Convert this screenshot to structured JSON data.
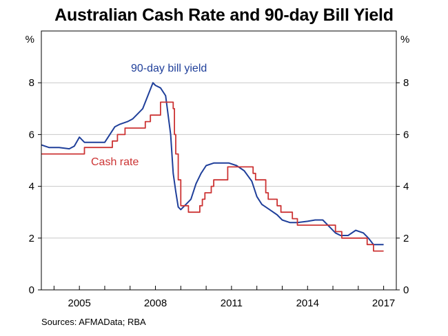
{
  "title": "Australian Cash Rate and 90-day Bill Yield",
  "source": "Sources:   AFMAData; RBA",
  "colors": {
    "bill_yield": "#1f3f9a",
    "cash_rate": "#cc3333",
    "grid": "#c8c8c8",
    "axis": "#000000"
  },
  "chart_data": {
    "type": "line",
    "title": "Australian Cash Rate and 90-day Bill Yield",
    "ylabel_left": "%",
    "ylabel_right": "%",
    "xlim": [
      2003.5,
      2017.5
    ],
    "ylim": [
      0,
      10
    ],
    "y_ticks": [
      0,
      2,
      4,
      6,
      8
    ],
    "x_ticks": [
      2005,
      2008,
      2011,
      2014,
      2017
    ],
    "x_tick_labels": [
      "2005",
      "2008",
      "2011",
      "2014",
      "2017"
    ],
    "grid": "horizontal",
    "series": [
      {
        "name": "90-day bill yield",
        "color": "#1f3f9a",
        "x": [
          2003.5,
          2003.8,
          2004.2,
          2004.6,
          2004.8,
          2005.0,
          2005.2,
          2005.6,
          2006.0,
          2006.2,
          2006.4,
          2006.6,
          2006.9,
          2007.1,
          2007.3,
          2007.5,
          2007.7,
          2007.9,
          2008.0,
          2008.2,
          2008.4,
          2008.6,
          2008.7,
          2008.8,
          2008.9,
          2009.0,
          2009.1,
          2009.2,
          2009.4,
          2009.6,
          2009.8,
          2010.0,
          2010.3,
          2010.6,
          2010.9,
          2011.2,
          2011.5,
          2011.8,
          2012.0,
          2012.2,
          2012.5,
          2012.8,
          2013.0,
          2013.3,
          2013.6,
          2014.0,
          2014.3,
          2014.6,
          2014.9,
          2015.1,
          2015.3,
          2015.6,
          2015.9,
          2016.2,
          2016.4,
          2016.6,
          2016.9,
          2017.0
        ],
        "y": [
          5.6,
          5.5,
          5.5,
          5.45,
          5.55,
          5.9,
          5.7,
          5.7,
          5.7,
          6.0,
          6.3,
          6.4,
          6.5,
          6.6,
          6.8,
          7.0,
          7.5,
          8.0,
          7.9,
          7.8,
          7.5,
          6.0,
          4.5,
          3.8,
          3.2,
          3.1,
          3.2,
          3.3,
          3.5,
          4.1,
          4.5,
          4.8,
          4.9,
          4.9,
          4.9,
          4.8,
          4.6,
          4.2,
          3.6,
          3.3,
          3.1,
          2.9,
          2.7,
          2.6,
          2.6,
          2.65,
          2.7,
          2.7,
          2.4,
          2.2,
          2.1,
          2.1,
          2.3,
          2.2,
          2.0,
          1.75,
          1.75,
          1.75
        ]
      },
      {
        "name": "Cash rate",
        "color": "#cc3333",
        "x": [
          2003.5,
          2005.2,
          2006.3,
          2006.5,
          2006.8,
          2007.6,
          2007.8,
          2008.2,
          2008.7,
          2008.75,
          2008.8,
          2008.9,
          2009.0,
          2009.3,
          2009.75,
          2009.85,
          2009.95,
          2010.2,
          2010.3,
          2010.85,
          2011.85,
          2011.95,
          2012.35,
          2012.45,
          2012.8,
          2012.95,
          2013.4,
          2013.6,
          2015.1,
          2015.35,
          2016.35,
          2016.6,
          2017.0
        ],
        "y": [
          5.25,
          5.5,
          5.75,
          6.0,
          6.25,
          6.5,
          6.75,
          7.25,
          7.0,
          6.0,
          5.25,
          4.25,
          3.25,
          3.0,
          3.25,
          3.5,
          3.75,
          4.0,
          4.25,
          4.75,
          4.5,
          4.25,
          3.75,
          3.5,
          3.25,
          3.0,
          2.75,
          2.5,
          2.25,
          2.0,
          1.75,
          1.5,
          1.5
        ]
      }
    ],
    "annotations": [
      {
        "text": "90-day bill yield",
        "series": "90-day bill yield"
      },
      {
        "text": "Cash rate",
        "series": "Cash rate"
      }
    ]
  }
}
